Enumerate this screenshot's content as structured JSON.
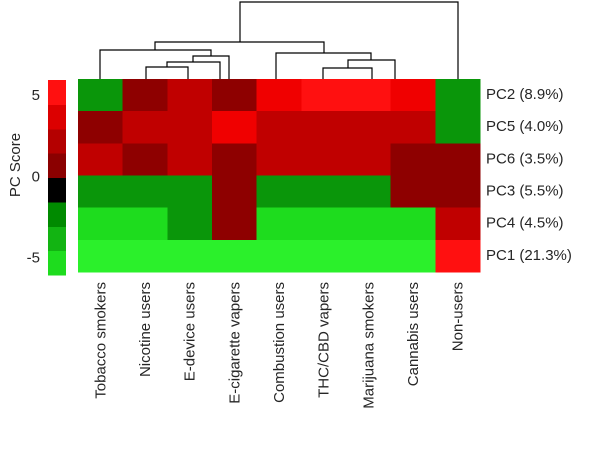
{
  "chart_data": {
    "type": "heatmap",
    "title": "",
    "xlabel": "",
    "ylabel": "PC Score",
    "columns": [
      "Tobacco smokers",
      "Nicotine users",
      "E-device users",
      "E-cigarette vapers",
      "Combustion users",
      "THC/CBD vapers",
      "Marijuana smokers",
      "Cannabis users",
      "Non-users"
    ],
    "rows": [
      "PC2 (8.9%)",
      "PC5 (4.0%)",
      "PC6 (3.5%)",
      "PC3 (5.5%)",
      "PC4 (4.5%)",
      "PC1 (21.3%)"
    ],
    "values": [
      [
        -3,
        0,
        2,
        0,
        4,
        5,
        5,
        4,
        -3
      ],
      [
        0,
        2,
        2,
        4,
        2,
        2,
        2,
        2,
        -3
      ],
      [
        2,
        0,
        2,
        0,
        2,
        2,
        2,
        0,
        0
      ],
      [
        -3,
        -3,
        -3,
        0,
        -3,
        -3,
        -3,
        0,
        0
      ],
      [
        -5,
        -5,
        -3,
        0,
        -5,
        -5,
        -5,
        -5,
        2
      ],
      [
        -6,
        -6,
        -6,
        -6,
        -6,
        -6,
        -6,
        -6,
        6
      ]
    ],
    "colorbar": {
      "ticks": [
        5,
        0,
        -5
      ],
      "range": [
        -6,
        6
      ],
      "colors": [
        "#1edc1e",
        "#12b412",
        "#008a00",
        "#000000",
        "#8b0000",
        "#b40000",
        "#dc0000",
        "#ff1010"
      ]
    },
    "colormap": [
      "#2bf02b",
      "#1edc1e",
      "#12b412",
      "#0a960a",
      "#008800",
      "#000000",
      "#8e0000",
      "#a00000",
      "#c00000",
      "#dc0000",
      "#f00000",
      "#ff1010"
    ]
  }
}
